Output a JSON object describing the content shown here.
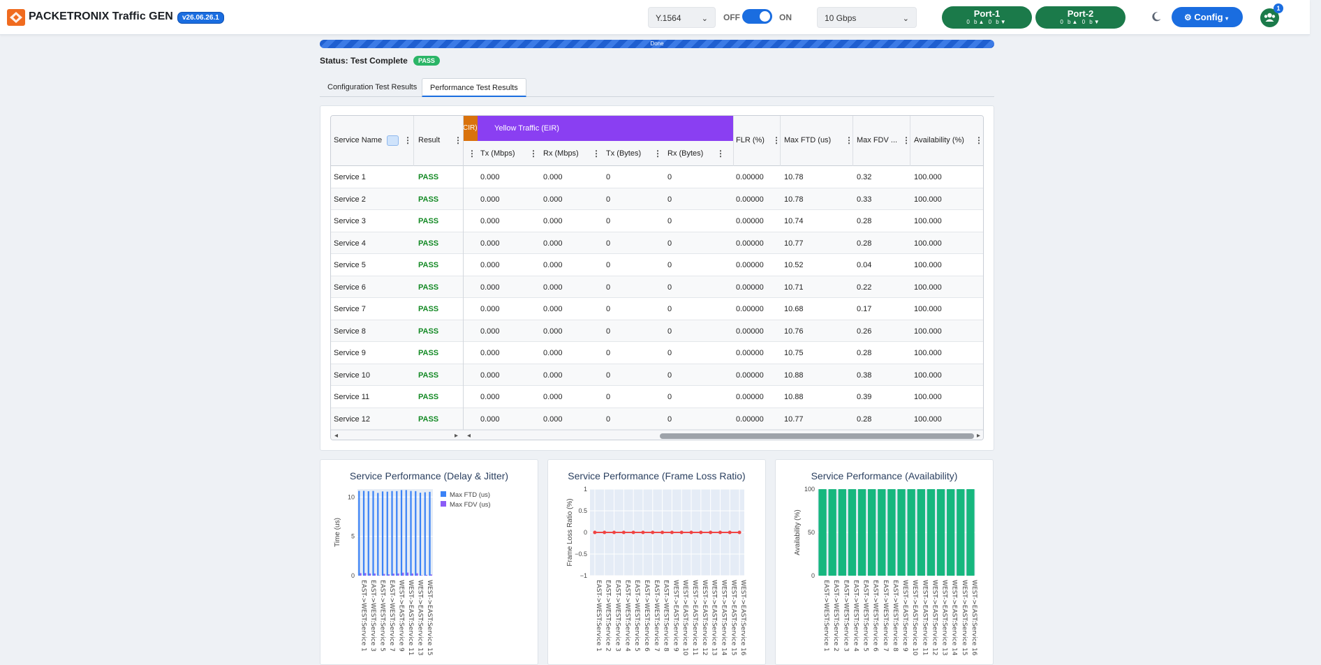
{
  "app": {
    "brand": "PACKETRONIX Traffic GEN",
    "version": "v26.06.26.1"
  },
  "header": {
    "test_type": "Y.1564",
    "toggle_off": "OFF",
    "toggle_on": "ON",
    "toggle_state": "on",
    "speed": "10 Gbps",
    "ports": [
      {
        "name": "Port-1",
        "stats": "0 b▲  0 b▼"
      },
      {
        "name": "Port-2",
        "stats": "0 b▲  0 b▼"
      }
    ],
    "config_label": "Config",
    "users_badge": "1"
  },
  "progress": {
    "label": "Done",
    "percent": 100
  },
  "status": {
    "text": "Status: Test Complete",
    "badge": "PASS"
  },
  "tabs": [
    {
      "label": "Configuration Test Results",
      "active": false
    },
    {
      "label": "Performance Test Results",
      "active": true
    }
  ],
  "grid": {
    "groups": {
      "cir": "CIR)",
      "eir": "Yellow Traffic (EIR)"
    },
    "columns": {
      "service": "Service Name",
      "result": "Result",
      "tx_mbps": "Tx (Mbps)",
      "rx_mbps": "Rx (Mbps)",
      "tx_bytes": "Tx (Bytes)",
      "rx_bytes": "Rx (Bytes)",
      "flr": "FLR (%)",
      "ftd": "Max FTD (us)",
      "fdv": "Max FDV ...",
      "avail": "Availability (%)"
    },
    "rows": [
      {
        "service": "Service 1",
        "result": "PASS",
        "tx": "0.000",
        "rx": "0.000",
        "txb": "0",
        "rxb": "0",
        "flr": "0.00000",
        "ftd": "10.78",
        "fdv": "0.32",
        "avail": "100.000"
      },
      {
        "service": "Service 2",
        "result": "PASS",
        "tx": "0.000",
        "rx": "0.000",
        "txb": "0",
        "rxb": "0",
        "flr": "0.00000",
        "ftd": "10.78",
        "fdv": "0.33",
        "avail": "100.000"
      },
      {
        "service": "Service 3",
        "result": "PASS",
        "tx": "0.000",
        "rx": "0.000",
        "txb": "0",
        "rxb": "0",
        "flr": "0.00000",
        "ftd": "10.74",
        "fdv": "0.28",
        "avail": "100.000"
      },
      {
        "service": "Service 4",
        "result": "PASS",
        "tx": "0.000",
        "rx": "0.000",
        "txb": "0",
        "rxb": "0",
        "flr": "0.00000",
        "ftd": "10.77",
        "fdv": "0.28",
        "avail": "100.000"
      },
      {
        "service": "Service 5",
        "result": "PASS",
        "tx": "0.000",
        "rx": "0.000",
        "txb": "0",
        "rxb": "0",
        "flr": "0.00000",
        "ftd": "10.52",
        "fdv": "0.04",
        "avail": "100.000"
      },
      {
        "service": "Service 6",
        "result": "PASS",
        "tx": "0.000",
        "rx": "0.000",
        "txb": "0",
        "rxb": "0",
        "flr": "0.00000",
        "ftd": "10.71",
        "fdv": "0.22",
        "avail": "100.000"
      },
      {
        "service": "Service 7",
        "result": "PASS",
        "tx": "0.000",
        "rx": "0.000",
        "txb": "0",
        "rxb": "0",
        "flr": "0.00000",
        "ftd": "10.68",
        "fdv": "0.17",
        "avail": "100.000"
      },
      {
        "service": "Service 8",
        "result": "PASS",
        "tx": "0.000",
        "rx": "0.000",
        "txb": "0",
        "rxb": "0",
        "flr": "0.00000",
        "ftd": "10.76",
        "fdv": "0.26",
        "avail": "100.000"
      },
      {
        "service": "Service 9",
        "result": "PASS",
        "tx": "0.000",
        "rx": "0.000",
        "txb": "0",
        "rxb": "0",
        "flr": "0.00000",
        "ftd": "10.75",
        "fdv": "0.28",
        "avail": "100.000"
      },
      {
        "service": "Service 10",
        "result": "PASS",
        "tx": "0.000",
        "rx": "0.000",
        "txb": "0",
        "rxb": "0",
        "flr": "0.00000",
        "ftd": "10.88",
        "fdv": "0.38",
        "avail": "100.000"
      },
      {
        "service": "Service 11",
        "result": "PASS",
        "tx": "0.000",
        "rx": "0.000",
        "txb": "0",
        "rxb": "0",
        "flr": "0.00000",
        "ftd": "10.88",
        "fdv": "0.39",
        "avail": "100.000"
      },
      {
        "service": "Service 12",
        "result": "PASS",
        "tx": "0.000",
        "rx": "0.000",
        "txb": "0",
        "rxb": "0",
        "flr": "0.00000",
        "ftd": "10.77",
        "fdv": "0.28",
        "avail": "100.000"
      }
    ]
  },
  "colors": {
    "accent": "#1a6de0",
    "port": "#1b7a4a",
    "pass": "#148a25",
    "eir": "#8a3ff2",
    "cir": "#d9720c",
    "ftd": "#3b82f6",
    "fdv": "#8b5cf6",
    "flr": "#ef4444",
    "avail": "#16b77e"
  },
  "chart_data": [
    {
      "type": "bar",
      "title": "Service Performance (Delay & Jitter)",
      "ylabel": "Time (us)",
      "ylim": [
        0,
        11
      ],
      "yticks": [
        "0",
        "5",
        "10"
      ],
      "categories": [
        "EAST->WEST:Service 1",
        "EAST->WEST:Service 2",
        "EAST->WEST:Service 3",
        "EAST->WEST:Service 4",
        "EAST->WEST:Service 5",
        "EAST->WEST:Service 6",
        "EAST->WEST:Service 7",
        "EAST->WEST:Service 8",
        "WEST->EAST:Service 9",
        "WEST->EAST:Service 10",
        "WEST->EAST:Service 11",
        "WEST->EAST:Service 12",
        "WEST->EAST:Service 13",
        "WEST->EAST:Service 14",
        "WEST->EAST:Service 15",
        "WEST->EAST:Service 16"
      ],
      "tick_labels": [
        "EAST->WEST:Service 1",
        "EAST->WEST:Service 3",
        "EAST->WEST:Service 5",
        "EAST->WEST:Service 7",
        "WEST->EAST:Service 9",
        "WEST->EAST:Service 11",
        "WEST->EAST:Service 13",
        "WEST->EAST:Service 15"
      ],
      "series": [
        {
          "name": "Max FTD (us)",
          "values": [
            10.78,
            10.78,
            10.74,
            10.77,
            10.52,
            10.71,
            10.68,
            10.76,
            10.75,
            10.88,
            10.88,
            10.77,
            10.75,
            10.55,
            10.6,
            10.66
          ]
        },
        {
          "name": "Max FDV (us)",
          "values": [
            0.32,
            0.33,
            0.28,
            0.28,
            0.04,
            0.22,
            0.17,
            0.26,
            0.28,
            0.38,
            0.39,
            0.28,
            0.3,
            0.05,
            0.1,
            0.15
          ]
        }
      ],
      "legend": "top-right"
    },
    {
      "type": "line",
      "title": "Service Performance (Frame Loss Ratio)",
      "ylabel": "Frame Loss Ratio (%)",
      "ylim": [
        -1,
        1
      ],
      "yticks": [
        "1",
        "0.5",
        "0",
        "−0.5",
        "−1"
      ],
      "categories": [
        "EAST->WEST:Service 1",
        "EAST->WEST:Service 2",
        "EAST->WEST:Service 3",
        "EAST->WEST:Service 4",
        "EAST->WEST:Service 5",
        "EAST->WEST:Service 6",
        "EAST->WEST:Service 7",
        "EAST->WEST:Service 8",
        "WEST->EAST:Service 9",
        "WEST->EAST:Service 10",
        "WEST->EAST:Service 11",
        "WEST->EAST:Service 12",
        "WEST->EAST:Service 13",
        "WEST->EAST:Service 14",
        "WEST->EAST:Service 15",
        "WEST->EAST:Service 16"
      ],
      "values": [
        0,
        0,
        0,
        0,
        0,
        0,
        0,
        0,
        0,
        0,
        0,
        0,
        0,
        0,
        0,
        0
      ]
    },
    {
      "type": "bar",
      "title": "Service Performance (Availability)",
      "ylabel": "Availability (%)",
      "ylim": [
        0,
        100
      ],
      "yticks": [
        "0",
        "50",
        "100"
      ],
      "categories": [
        "EAST->WEST:Service 1",
        "EAST->WEST:Service 2",
        "EAST->WEST:Service 3",
        "EAST->WEST:Service 4",
        "EAST->WEST:Service 5",
        "EAST->WEST:Service 6",
        "EAST->WEST:Service 7",
        "EAST->WEST:Service 8",
        "WEST->EAST:Service 9",
        "WEST->EAST:Service 10",
        "WEST->EAST:Service 11",
        "WEST->EAST:Service 12",
        "WEST->EAST:Service 13",
        "WEST->EAST:Service 14",
        "WEST->EAST:Service 15",
        "WEST->EAST:Service 16"
      ],
      "values": [
        100,
        100,
        100,
        100,
        100,
        100,
        100,
        100,
        100,
        100,
        100,
        100,
        100,
        100,
        100,
        100
      ]
    }
  ]
}
